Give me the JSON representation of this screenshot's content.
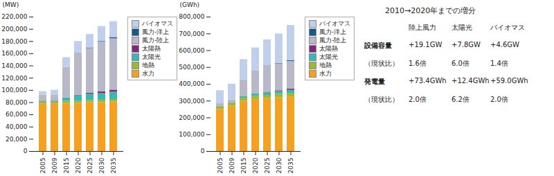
{
  "chart_data": [
    {
      "type": "bar",
      "stacked": true,
      "ylabel": "(MW)",
      "grid": false,
      "legend": "right",
      "categories": [
        "2005",
        "2009",
        "2015",
        "2020",
        "2025",
        "2030",
        "2035"
      ],
      "series": [
        {
          "name": "水力",
          "color": "#f5a020",
          "values": [
            78000,
            78000,
            79000,
            79000,
            80000,
            80000,
            81000
          ]
        },
        {
          "name": "地熱",
          "color": "#9ab832",
          "values": [
            2800,
            2800,
            3100,
            3200,
            3500,
            3800,
            4000
          ]
        },
        {
          "name": "太陽光",
          "color": "#38b8b0",
          "values": [
            1300,
            1500,
            5000,
            9100,
            10500,
            11000,
            12000
          ]
        },
        {
          "name": "太陽熱",
          "color": "#802880",
          "values": [
            400,
            400,
            500,
            700,
            1500,
            2800,
            3500
          ]
        },
        {
          "name": "風力-陸上",
          "color": "#b8b8c8",
          "values": [
            9500,
            9500,
            50000,
            68000,
            73000,
            82000,
            84000
          ]
        },
        {
          "name": "風力-洋上",
          "color": "#185890",
          "values": [
            0,
            0,
            0,
            500,
            1000,
            1000,
            2000
          ]
        },
        {
          "name": "バイオマス",
          "color": "#c0d0ec",
          "values": [
            6000,
            8000,
            16000,
            19600,
            22000,
            24000,
            26000
          ]
        }
      ],
      "ylim": [
        0,
        220000
      ],
      "yticks": [
        0,
        {
          "value": 20000,
          "label": "20,000"
        },
        {
          "value": 40000,
          "label": "40,000"
        },
        {
          "value": 60000,
          "label": "60,000"
        },
        {
          "value": 80000,
          "label": "80,000"
        },
        {
          "value": 100000,
          "label": "100,000"
        },
        {
          "value": 120000,
          "label": "120,000"
        },
        {
          "value": 140000,
          "label": "140,000"
        },
        {
          "value": 160000,
          "label": "160,000"
        },
        {
          "value": 180000,
          "label": "180,000"
        },
        {
          "value": 200000,
          "label": "200,000"
        },
        {
          "value": 220000,
          "label": "220,000"
        }
      ]
    },
    {
      "type": "bar",
      "stacked": true,
      "ylabel": "(GWh)",
      "grid": false,
      "legend": "right",
      "categories": [
        "2005",
        "2009",
        "2015",
        "2020",
        "2025",
        "2030",
        "2035"
      ],
      "series": [
        {
          "name": "水力",
          "color": "#f5a020",
          "values": [
            250000,
            270000,
            300000,
            310000,
            315000,
            320000,
            325000
          ]
        },
        {
          "name": "地熱",
          "color": "#9ab832",
          "values": [
            15000,
            16000,
            17000,
            18000,
            19000,
            20000,
            21000
          ]
        },
        {
          "name": "太陽光",
          "color": "#38b8b0",
          "values": [
            1500,
            2000,
            9000,
            13900,
            15500,
            16500,
            18000
          ]
        },
        {
          "name": "太陽熱",
          "color": "#802880",
          "values": [
            800,
            800,
            1000,
            1400,
            3000,
            5000,
            7000
          ]
        },
        {
          "name": "風力-陸上",
          "color": "#b8b8c8",
          "values": [
            17000,
            17000,
            100000,
            135000,
            155000,
            160000,
            165000
          ]
        },
        {
          "name": "風力-洋上",
          "color": "#185890",
          "values": [
            0,
            0,
            0,
            1000,
            2000,
            3000,
            4000
          ]
        },
        {
          "name": "バイオマス",
          "color": "#c0d0ec",
          "values": [
            78000,
            95000,
            120000,
            137000,
            155000,
            175000,
            210000
          ]
        }
      ],
      "ylim": [
        0,
        800000
      ],
      "yticks": [
        0,
        {
          "value": 100000,
          "label": "100,000"
        },
        {
          "value": 200000,
          "label": "200,000"
        },
        {
          "value": 300000,
          "label": "300,000"
        },
        {
          "value": 400000,
          "label": "400,000"
        },
        {
          "value": 500000,
          "label": "500,000"
        },
        {
          "value": 600000,
          "label": "600,000"
        },
        {
          "value": 700000,
          "label": "700,000"
        },
        {
          "value": 800000,
          "label": "800,000"
        }
      ]
    }
  ],
  "annotations": {
    "title": "2010→2020年までの増分",
    "rows": [
      [
        null,
        "陸上風力",
        "太陽光",
        "バイオマス"
      ],
      [
        "設備容量",
        "+19.1GW",
        "+7.8GW",
        "+4.6GW"
      ],
      [
        "（現状比）",
        "1.6倍",
        "6.0倍",
        "1.4倍"
      ],
      [
        "発電量",
        "+73.4GWh",
        "+12.4GWh",
        "+59.0GWh"
      ],
      [
        "（現状比）",
        "2.0倍",
        "6.2倍",
        "2.0倍"
      ]
    ]
  }
}
